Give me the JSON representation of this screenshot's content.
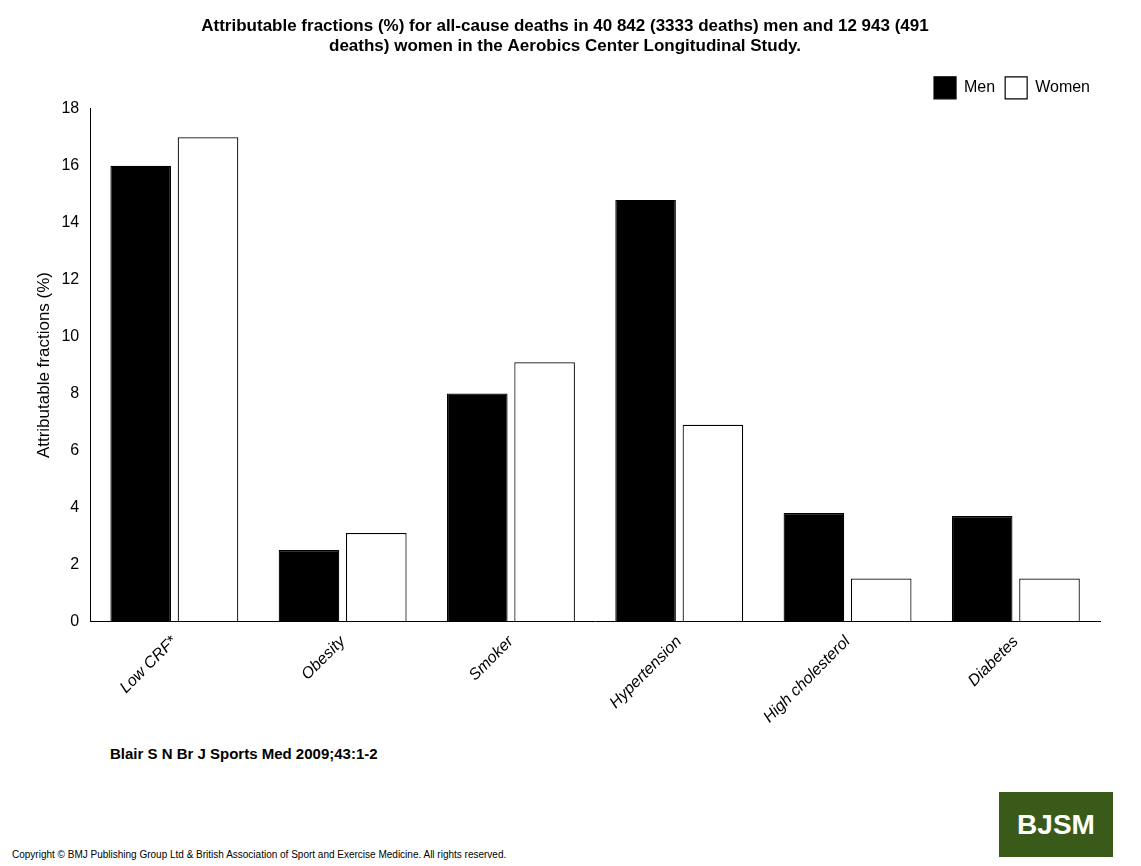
{
  "chart_data": {
    "type": "bar",
    "title": "Attributable fractions (%) for all-cause deaths in 40 842 (3333 deaths) men and 12 943 (491\ndeaths) women in the Aerobics Center Longitudinal Study.",
    "categories": [
      "Low CRF*",
      "Obesity",
      "Smoker",
      "Hypertension",
      "High cholesterol",
      "Diabetes"
    ],
    "series": [
      {
        "name": "Men",
        "color": "#000000",
        "values": [
          16.0,
          2.5,
          8.0,
          14.8,
          3.8,
          3.7
        ]
      },
      {
        "name": "Women",
        "color": "#ffffff",
        "values": [
          17.0,
          3.1,
          9.1,
          6.9,
          1.5,
          1.5
        ]
      }
    ],
    "ylabel": "Attributable fractions (%)",
    "ylim": [
      0,
      18
    ],
    "yticks": [
      0,
      2,
      4,
      6,
      8,
      10,
      12,
      14,
      16,
      18
    ],
    "grid": false,
    "legend": "upper right",
    "annotations": [
      "Blair S N Br J Sports Med 2009;43:1-2",
      "Copyright © BMJ Publishing Group Ltd & British Association of Sport and Exercise Medicine. All rights reserved.",
      "BJSM"
    ]
  }
}
